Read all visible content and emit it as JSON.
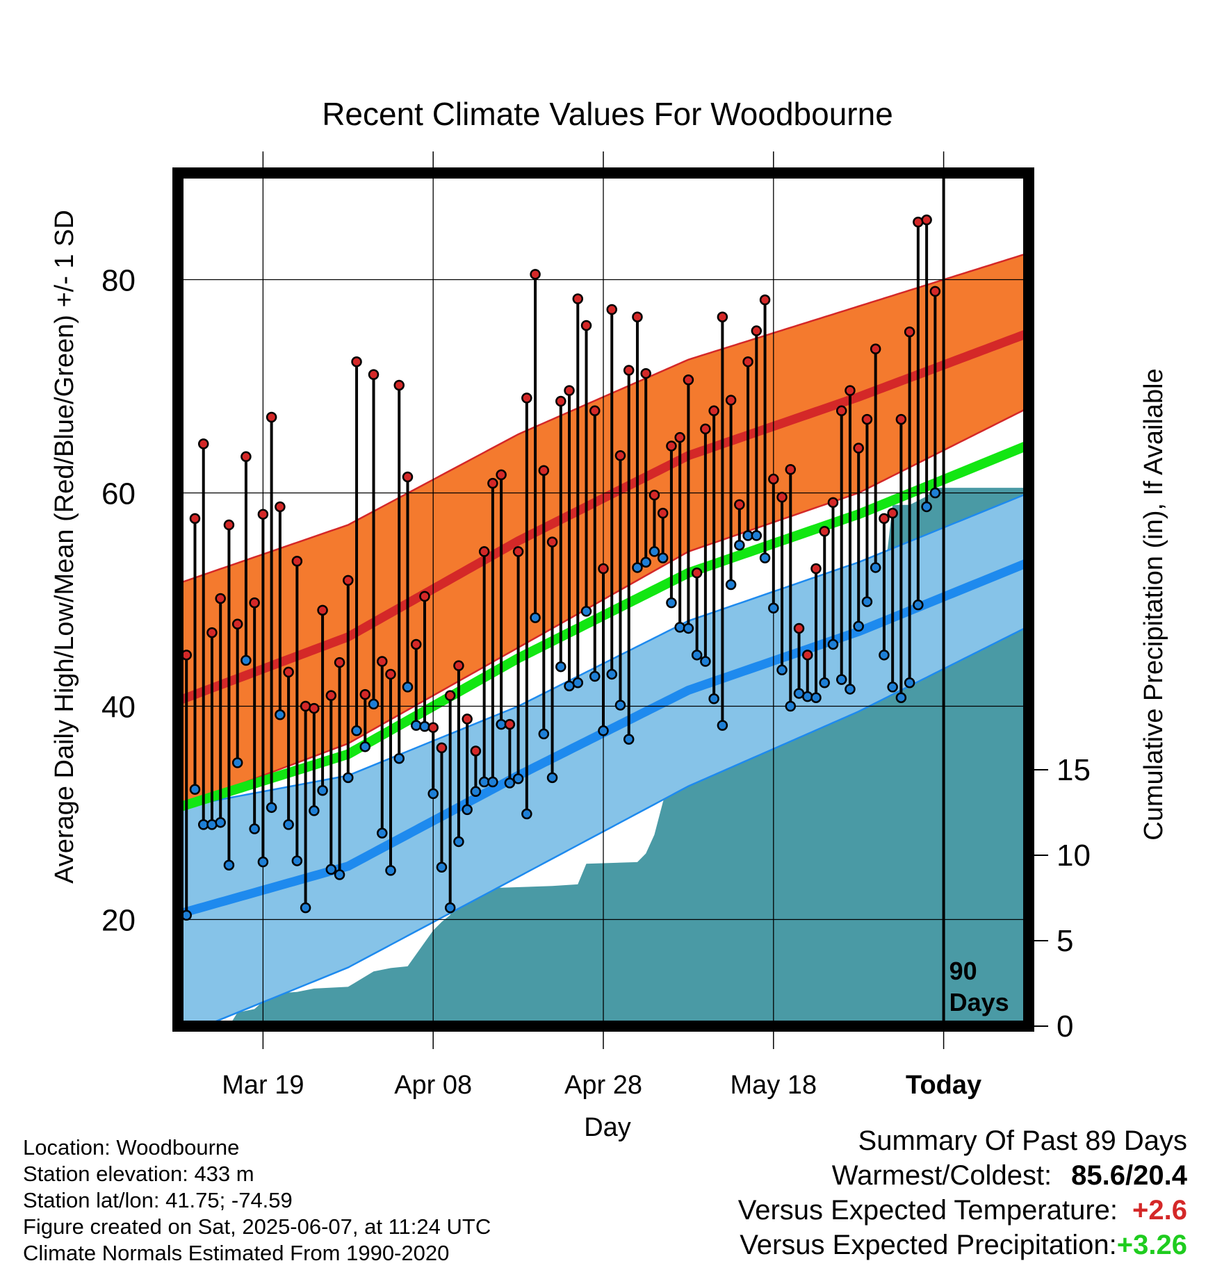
{
  "chart_data": {
    "type": "line",
    "title": "Recent Climate Values For Woodbourne",
    "xlabel": "Day",
    "ylabel_left": "Average Daily High/Low/Mean (Red/Blue/Green) +/- 1 SD",
    "ylabel_right": "Cumulative Precipitation (in), If Available",
    "x_tick_labels": [
      "Mar 19",
      "Apr 08",
      "Apr 28",
      "May 18",
      "Today"
    ],
    "y_ticks_left": [
      "20",
      "40",
      "60",
      "80"
    ],
    "y_ticks_right": [
      "0",
      "5",
      "10",
      "15"
    ],
    "ylim_left": [
      10,
      90
    ],
    "ylim_right": [
      0,
      50
    ],
    "today_label": [
      "90",
      "Days"
    ],
    "grid": true,
    "days_shown": 100,
    "normals": {
      "days": [
        0,
        20,
        40,
        60,
        80,
        100
      ],
      "high_mean": [
        40.5,
        46.5,
        55.5,
        63.5,
        69.0,
        75.0
      ],
      "high_upper": [
        51.5,
        57.0,
        65.5,
        72.5,
        77.5,
        82.5
      ],
      "high_lower": [
        30.5,
        36.5,
        45.5,
        54.5,
        60.0,
        68.0
      ],
      "mean": [
        30.5,
        35.5,
        44.5,
        52.5,
        58.0,
        64.5
      ],
      "low_mean": [
        20.5,
        25.0,
        33.5,
        41.5,
        47.0,
        53.5
      ],
      "low_upper": [
        30.5,
        33.5,
        40.0,
        48.0,
        53.5,
        60.0
      ],
      "low_lower": [
        9.0,
        15.5,
        24.0,
        32.5,
        39.5,
        47.5
      ]
    },
    "series": [
      {
        "name": "High",
        "color": "#d42828",
        "values": [
          44.8,
          57.6,
          64.6,
          46.9,
          50.1,
          57.0,
          47.7,
          63.4,
          49.7,
          58.0,
          67.1,
          58.7,
          43.2,
          53.6,
          40.0,
          39.8,
          49.0,
          41.0,
          44.1,
          51.8,
          72.3,
          41.1,
          71.1,
          44.2,
          43.0,
          70.1,
          61.5,
          45.8,
          50.3,
          38.0,
          36.1,
          41.0,
          43.8,
          38.8,
          35.8,
          54.5,
          60.9,
          61.7,
          38.3,
          54.5,
          68.9,
          80.5,
          62.1,
          55.4,
          68.6,
          69.6,
          78.2,
          75.7,
          67.7,
          52.9,
          77.2,
          63.5,
          71.5,
          76.5,
          71.2,
          59.8,
          58.1,
          64.4,
          65.2,
          70.6,
          52.5,
          66.0,
          67.7,
          76.5,
          68.7,
          58.9,
          72.3,
          75.2,
          78.1,
          61.3,
          59.6,
          62.2,
          47.3,
          44.8,
          52.9,
          56.4,
          59.1,
          67.7,
          69.6,
          64.2,
          66.9,
          73.5,
          57.6,
          58.1,
          66.9,
          75.1,
          85.4,
          85.6,
          78.9
        ],
        "lows": [
          20.4,
          32.2,
          28.9,
          28.9,
          29.1,
          25.1,
          34.7,
          44.3,
          28.5,
          25.4,
          30.5,
          39.2,
          28.9,
          25.5,
          21.1,
          30.2,
          32.1,
          24.7,
          24.2,
          33.3,
          37.7,
          36.2,
          40.2,
          28.1,
          24.6,
          35.1,
          41.8,
          38.2,
          38.1,
          31.8,
          24.9,
          21.1,
          27.3,
          30.3,
          32.0,
          32.9,
          32.9,
          38.3,
          32.8,
          33.2,
          29.9,
          48.3,
          37.4,
          33.3,
          43.7,
          41.9,
          42.2,
          48.9,
          42.8,
          37.7,
          43.0,
          40.1,
          36.9,
          53.0,
          53.5,
          54.5,
          53.9,
          49.7,
          47.4,
          47.3,
          44.8,
          44.2,
          40.7,
          38.2,
          51.4,
          55.1,
          56.0,
          56.0,
          53.9,
          49.2,
          43.4,
          40.0,
          41.2,
          40.9,
          40.8,
          42.2,
          45.8,
          42.5,
          41.6,
          47.5,
          49.8,
          53.0,
          44.8,
          41.8,
          40.8,
          42.2,
          49.5,
          58.7,
          60.0
        ],
        "lows_color": "#1e7fd6"
      }
    ],
    "precip_cumulative": {
      "days": [
        0,
        6,
        7,
        9,
        11,
        14,
        16,
        20,
        23,
        25,
        27,
        30,
        31,
        32,
        33,
        35,
        37,
        38,
        44,
        47,
        48,
        54,
        55,
        56,
        57,
        58,
        59,
        61,
        62,
        64,
        67,
        69,
        73,
        75,
        76,
        79,
        83,
        84,
        86,
        88,
        89,
        90
      ],
      "values": [
        0,
        0,
        0.8,
        1.0,
        1.9,
        2.0,
        2.2,
        2.3,
        3.2,
        3.4,
        3.5,
        5.6,
        6.1,
        6.5,
        8.0,
        8.0,
        8.1,
        8.1,
        8.2,
        8.3,
        9.5,
        9.6,
        10.1,
        11.2,
        13.1,
        14.7,
        18.5,
        18.6,
        20.7,
        20.8,
        22.0,
        22.0,
        22.5,
        25.6,
        25.7,
        25.8,
        26.1,
        30.5,
        30.5,
        31.0,
        31.5,
        31.5
      ]
    }
  },
  "footer": {
    "location": "Location: Woodbourne",
    "elevation": "Station elevation: 433 m",
    "latlon": "Station lat/lon: 41.75; -74.59",
    "created": "Figure created on Sat, 2025-06-07, at 11:24 UTC",
    "normals": "Climate Normals Estimated From 1990-2020"
  },
  "summary": {
    "heading": "Summary Of Past 89 Days",
    "warm_cold_label": "Warmest/Coldest:",
    "warm_cold_value": "85.6/20.4",
    "temp_label": "Versus Expected Temperature:",
    "temp_value": "+2.6",
    "temp_color": "#d42828",
    "precip_label": "Versus Expected Precipitation:",
    "precip_value": "+3.26",
    "precip_color": "#1fcc1f"
  },
  "colors": {
    "high_band": "#f47a2e",
    "high_line": "#d42828",
    "mean_line": "#12e612",
    "low_band": "#86c3e8",
    "low_line": "#1e8aee",
    "precip_fill": "#4a9aa5"
  }
}
